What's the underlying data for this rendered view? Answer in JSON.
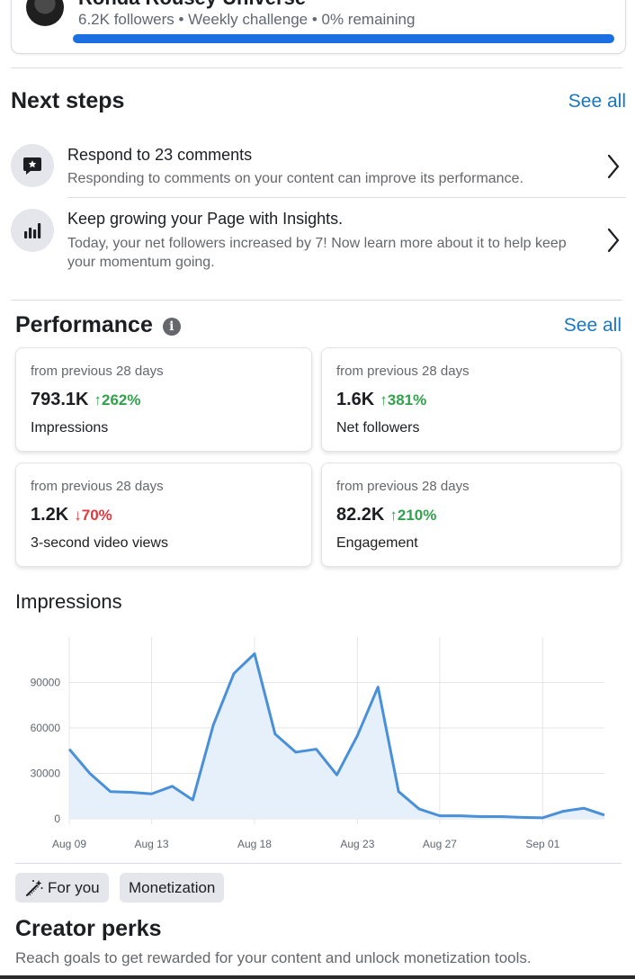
{
  "top_card": {
    "title": "Ronda Rousey Universe",
    "subtitle": "6.2K followers • Weekly challenge • 0% remaining",
    "progress": 1.0
  },
  "next_steps": {
    "title": "Next steps",
    "see_all": "See all",
    "items": [
      {
        "icon": "comment-star-icon",
        "title": "Respond to 23 comments",
        "desc": "Responding to comments on your content can improve its performance."
      },
      {
        "icon": "insights-bars-icon",
        "title": "Keep growing your Page with Insights.",
        "desc": "Today, your net followers increased by 7! Now learn more about it to help keep your momentum going."
      }
    ]
  },
  "performance": {
    "title": "Performance",
    "see_all": "See all",
    "cards": [
      {
        "period": "from previous 28 days",
        "value": "793.1K",
        "change": "↑262%",
        "direction": "up",
        "label": "Impressions"
      },
      {
        "period": "from previous 28 days",
        "value": "1.6K",
        "change": "↑381%",
        "direction": "up",
        "label": "Net followers"
      },
      {
        "period": "from previous 28 days",
        "value": "1.2K",
        "change": "↓70%",
        "direction": "down",
        "label": "3-second video views"
      },
      {
        "period": "from previous 28 days",
        "value": "82.2K",
        "change": "↑210%",
        "direction": "up",
        "label": "Engagement"
      }
    ]
  },
  "impressions_chart_title": "Impressions",
  "chart_data": {
    "type": "area",
    "title": "Impressions",
    "x_tick_labels": [
      "Aug 09",
      "Aug 13",
      "Aug 18",
      "Aug 23",
      "Aug 27",
      "Sep 01"
    ],
    "y_tick_labels": [
      "0",
      "30000",
      "60000",
      "90000"
    ],
    "ylim": [
      0,
      120000
    ],
    "x": [
      "Aug 09",
      "Aug 10",
      "Aug 11",
      "Aug 12",
      "Aug 13",
      "Aug 14",
      "Aug 15",
      "Aug 16",
      "Aug 17",
      "Aug 18",
      "Aug 19",
      "Aug 20",
      "Aug 21",
      "Aug 22",
      "Aug 23",
      "Aug 24",
      "Aug 25",
      "Aug 26",
      "Aug 27",
      "Aug 28",
      "Aug 29",
      "Aug 30",
      "Aug 31",
      "Sep 01",
      "Sep 02",
      "Sep 03",
      "Sep 04"
    ],
    "values": [
      46000,
      30000,
      18000,
      17500,
      16500,
      21500,
      12500,
      62000,
      96000,
      109000,
      56000,
      44000,
      46000,
      29000,
      55000,
      87000,
      18000,
      6500,
      2000,
      2000,
      1500,
      1500,
      1000,
      700,
      5000,
      7000,
      2500
    ],
    "color": "#4a90d9",
    "fill": "#e6f0fb",
    "grid": true
  },
  "tabs": [
    {
      "icon": "magic-wand-icon",
      "label": "For you"
    },
    {
      "label": "Monetization"
    }
  ],
  "creator_perks": {
    "title": "Creator perks",
    "desc": "Reach goals to get rewarded for your content and unlock monetization tools."
  }
}
